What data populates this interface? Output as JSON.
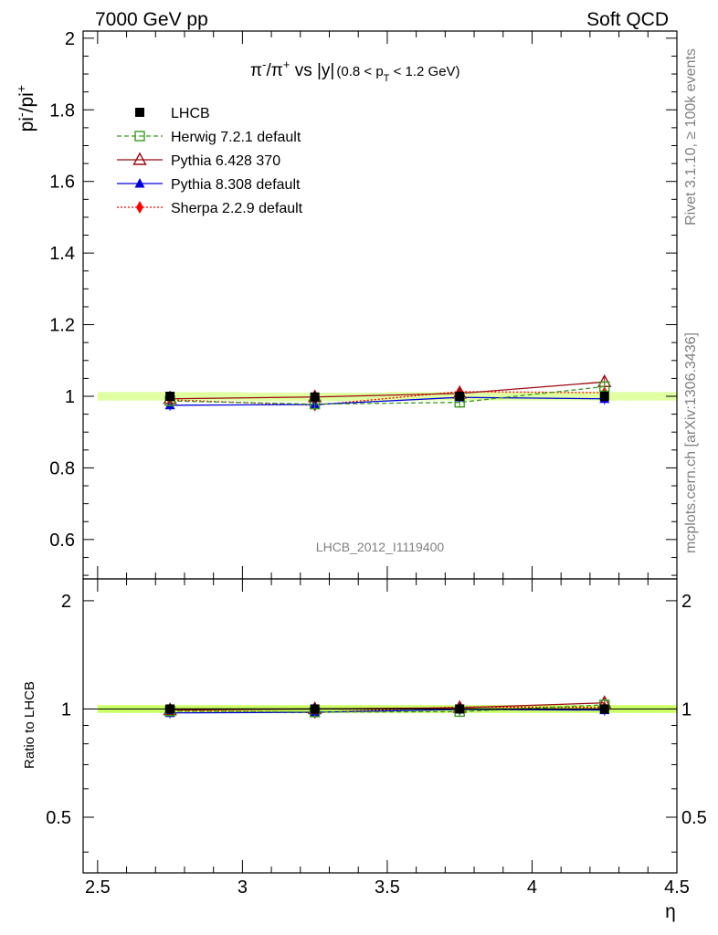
{
  "header": {
    "left": "7000 GeV pp",
    "right": "Soft QCD"
  },
  "side_labels": {
    "rivet": "Rivet 3.1.10, ≥ 100k events",
    "source": "mcplots.cern.ch [arXiv:1306.3436]"
  },
  "colors": {
    "LHCB": "#000000",
    "Herwig": "#3a9a1e",
    "Pythia6": "#9b0a12",
    "Pythia8": "#0000dd",
    "Sherpa": "#ff0000",
    "band": "#ccff66"
  },
  "chart_data": [
    {
      "type": "line",
      "title": {
        "part1": "π",
        "sup1": "-",
        "part2": "/π",
        "sup2": "+",
        "part3": " vs |y|",
        "range_part1": "(0.8 < p",
        "range_sub": "T",
        "range_part2": " < 1.2 GeV)"
      },
      "ylabel": {
        "base1": "pi",
        "sup1": "-",
        "base2": "/pi",
        "sup2": "+"
      },
      "watermark": "LHCB_2012_I1119400",
      "xlim": [
        2.45,
        4.5
      ],
      "ylim": [
        0.49,
        2.02
      ],
      "y_ticks": [
        "0.6",
        "0.8",
        "1",
        "1.2",
        "1.4",
        "1.6",
        "1.8",
        "2"
      ],
      "y_tick_values": [
        0.6,
        0.8,
        1.0,
        1.2,
        1.4,
        1.6,
        1.8,
        2.0
      ],
      "x": [
        2.75,
        3.25,
        3.75,
        4.25
      ],
      "series": [
        {
          "name": "LHCB",
          "values": [
            1.0,
            0.998,
            1.0,
            1.0
          ]
        },
        {
          "name": "Herwig 7.2.1 default",
          "values": [
            0.987,
            0.978,
            0.983,
            1.027
          ]
        },
        {
          "name": "Pythia 6.428 370",
          "values": [
            0.993,
            0.998,
            1.008,
            1.04
          ]
        },
        {
          "name": "Pythia 8.308 default",
          "values": [
            0.975,
            0.977,
            0.997,
            0.993
          ]
        },
        {
          "name": "Sherpa 2.2.9 default",
          "values": [
            0.99,
            0.975,
            1.013,
            1.01
          ]
        }
      ]
    },
    {
      "type": "line",
      "ylabel": "Ratio to LHCB",
      "xlabel": "η",
      "xlim": [
        2.45,
        4.5
      ],
      "ylim": [
        0.35,
        2.3
      ],
      "y_ticks": [
        "0.5",
        "1",
        "2"
      ],
      "y_tick_values": [
        0.5,
        1.0,
        2.0
      ],
      "x_ticks": [
        "2.5",
        "3",
        "3.5",
        "4",
        "4.5"
      ],
      "x_tick_values": [
        2.5,
        3.0,
        3.5,
        4.0,
        4.5
      ],
      "x": [
        2.75,
        3.25,
        3.75,
        4.25
      ],
      "series": [
        {
          "name": "LHCB",
          "values": [
            1.0,
            1.0,
            1.0,
            1.0
          ]
        },
        {
          "name": "Herwig 7.2.1 default",
          "values": [
            0.987,
            0.98,
            0.983,
            1.027
          ]
        },
        {
          "name": "Pythia 6.428 370",
          "values": [
            0.993,
            1.0,
            1.008,
            1.04
          ]
        },
        {
          "name": "Pythia 8.308 default",
          "values": [
            0.975,
            0.979,
            0.997,
            0.993
          ]
        },
        {
          "name": "Sherpa 2.2.9 default",
          "values": [
            0.99,
            0.977,
            1.013,
            1.01
          ]
        }
      ]
    }
  ],
  "legend": [
    {
      "key": "LHCB",
      "label": "LHCB"
    },
    {
      "key": "Herwig",
      "label": "Herwig 7.2.1 default"
    },
    {
      "key": "Pythia6",
      "label": "Pythia 6.428 370"
    },
    {
      "key": "Pythia8",
      "label": "Pythia 8.308 default"
    },
    {
      "key": "Sherpa",
      "label": "Sherpa 2.2.9 default"
    }
  ]
}
